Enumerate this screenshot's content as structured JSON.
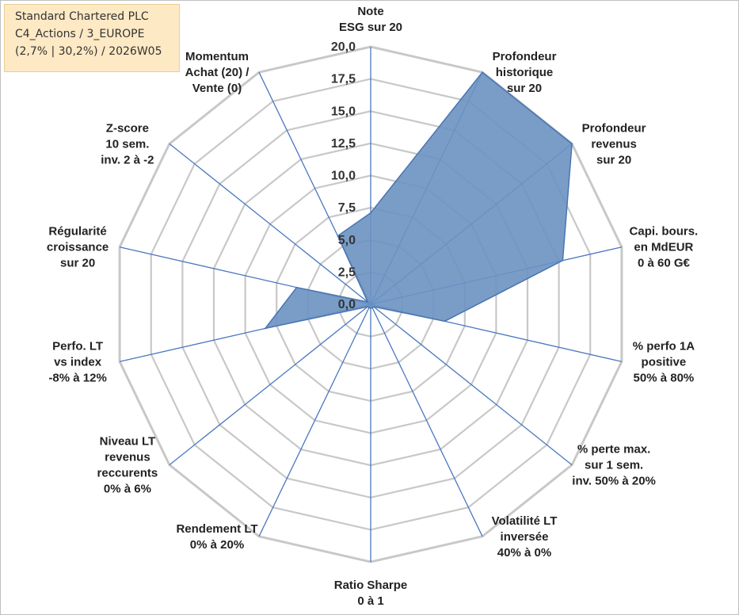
{
  "info": {
    "line1": "Standard Chartered PLC",
    "line2": "C4_Actions / 3_EUROPE",
    "line3": "(2,7% | 30,2%) / 2026W05"
  },
  "chart_data": {
    "type": "radar",
    "rmin": 0,
    "rmax": 20,
    "tick_step": 2.5,
    "tick_labels": [
      "0,0",
      "2,5",
      "5,0",
      "7,5",
      "10,0",
      "12,5",
      "15,0",
      "17,5",
      "20,0"
    ],
    "series_color": "#6b92c2",
    "axes": [
      {
        "label": [
          "Note",
          "ESG sur 20"
        ],
        "value": 7.1
      },
      {
        "label": [
          "Profondeur",
          "historique",
          "sur 20"
        ],
        "value": 20
      },
      {
        "label": [
          "Profondeur",
          "revenus",
          "sur 20"
        ],
        "value": 20
      },
      {
        "label": [
          "Capi. bours.",
          "en MdEUR",
          "0 à 60 G€"
        ],
        "value": 15.3
      },
      {
        "label": [
          "% perfo 1A",
          "positive",
          "50% à 80%"
        ],
        "value": 5.9
      },
      {
        "label": [
          "% perte max.",
          "sur 1 sem.",
          "inv. 50% à 20%"
        ],
        "value": 0.3
      },
      {
        "label": [
          "Volatilité LT",
          "inversée",
          "40% à 0%"
        ],
        "value": 0.3
      },
      {
        "label": [
          "Ratio Sharpe",
          "0 à 1"
        ],
        "value": 0.3
      },
      {
        "label": [
          "Rendement LT",
          "0% à 20%"
        ],
        "value": 0.3
      },
      {
        "label": [
          "Niveau LT",
          "revenus",
          "reccurents",
          "0% à 6%"
        ],
        "value": 0.3
      },
      {
        "label": [
          "Perfo. LT",
          "vs index",
          "-8% à 12%"
        ],
        "value": 8.4
      },
      {
        "label": [
          "Régularité",
          "croissance",
          "sur 20"
        ],
        "value": 5.9
      },
      {
        "label": [
          "Z-score",
          "10 sem.",
          "inv. 2 à -2"
        ],
        "value": 0.3
      },
      {
        "label": [
          "Momentum",
          "Achat (20) /",
          "Vente (0)"
        ],
        "value": 5.9
      }
    ]
  }
}
